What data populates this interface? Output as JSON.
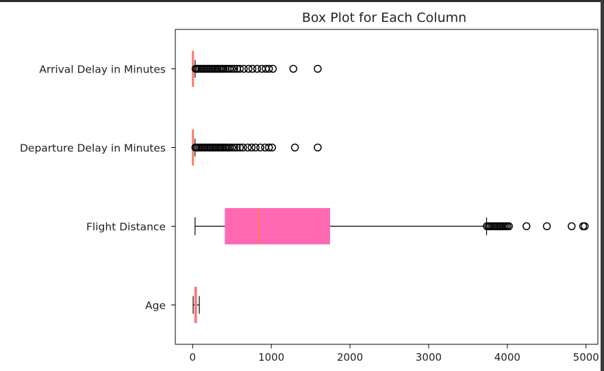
{
  "chart_data": {
    "type": "boxplot",
    "orientation": "horizontal",
    "title": "Box Plot for Each Column",
    "xlabel": "",
    "ylabel": "",
    "xlim": [
      -220,
      5150
    ],
    "xticks": [
      0,
      1000,
      2000,
      3000,
      4000,
      5000
    ],
    "grid": false,
    "categories": [
      "Age",
      "Flight Distance",
      "Departure Delay in Minutes",
      "Arrival Delay in Minutes"
    ],
    "boxes": [
      {
        "label": "Age",
        "whislo": 7,
        "q1": 27,
        "med": 40,
        "q3": 51,
        "whishi": 85,
        "fliers": []
      },
      {
        "label": "Flight Distance",
        "whislo": 31,
        "q1": 414,
        "med": 843,
        "q3": 1743,
        "whishi": 3736,
        "fliers": [
          3740,
          3760,
          3780,
          3800,
          3820,
          3840,
          3860,
          3880,
          3900,
          3920,
          3940,
          3960,
          3980,
          4000,
          4020,
          4243,
          4502,
          4817,
          4963,
          4983
        ]
      },
      {
        "label": "Departure Delay in Minutes",
        "whislo": 0,
        "q1": 0,
        "med": 0,
        "q3": 12,
        "whishi": 30,
        "fliers": [
          35,
          50,
          70,
          90,
          110,
          130,
          150,
          170,
          190,
          210,
          230,
          250,
          270,
          290,
          310,
          330,
          350,
          370,
          390,
          410,
          430,
          450,
          470,
          500,
          530,
          560,
          600,
          640,
          700,
          750,
          800,
          860,
          920,
          970,
          1010,
          1300,
          1590
        ]
      },
      {
        "label": "Arrival Delay in Minutes",
        "whislo": 0,
        "q1": 0,
        "med": 0,
        "q3": 13,
        "whishi": 32,
        "fliers": [
          38,
          55,
          75,
          95,
          115,
          135,
          155,
          175,
          195,
          215,
          235,
          255,
          275,
          295,
          315,
          335,
          355,
          375,
          395,
          420,
          445,
          470,
          500,
          530,
          565,
          600,
          650,
          710,
          760,
          820,
          880,
          930,
          970,
          1020,
          1280,
          1590
        ]
      }
    ],
    "colors": {
      "box_fill": "#ff69b4",
      "median": "#ff7f50",
      "line": "#000000"
    }
  }
}
